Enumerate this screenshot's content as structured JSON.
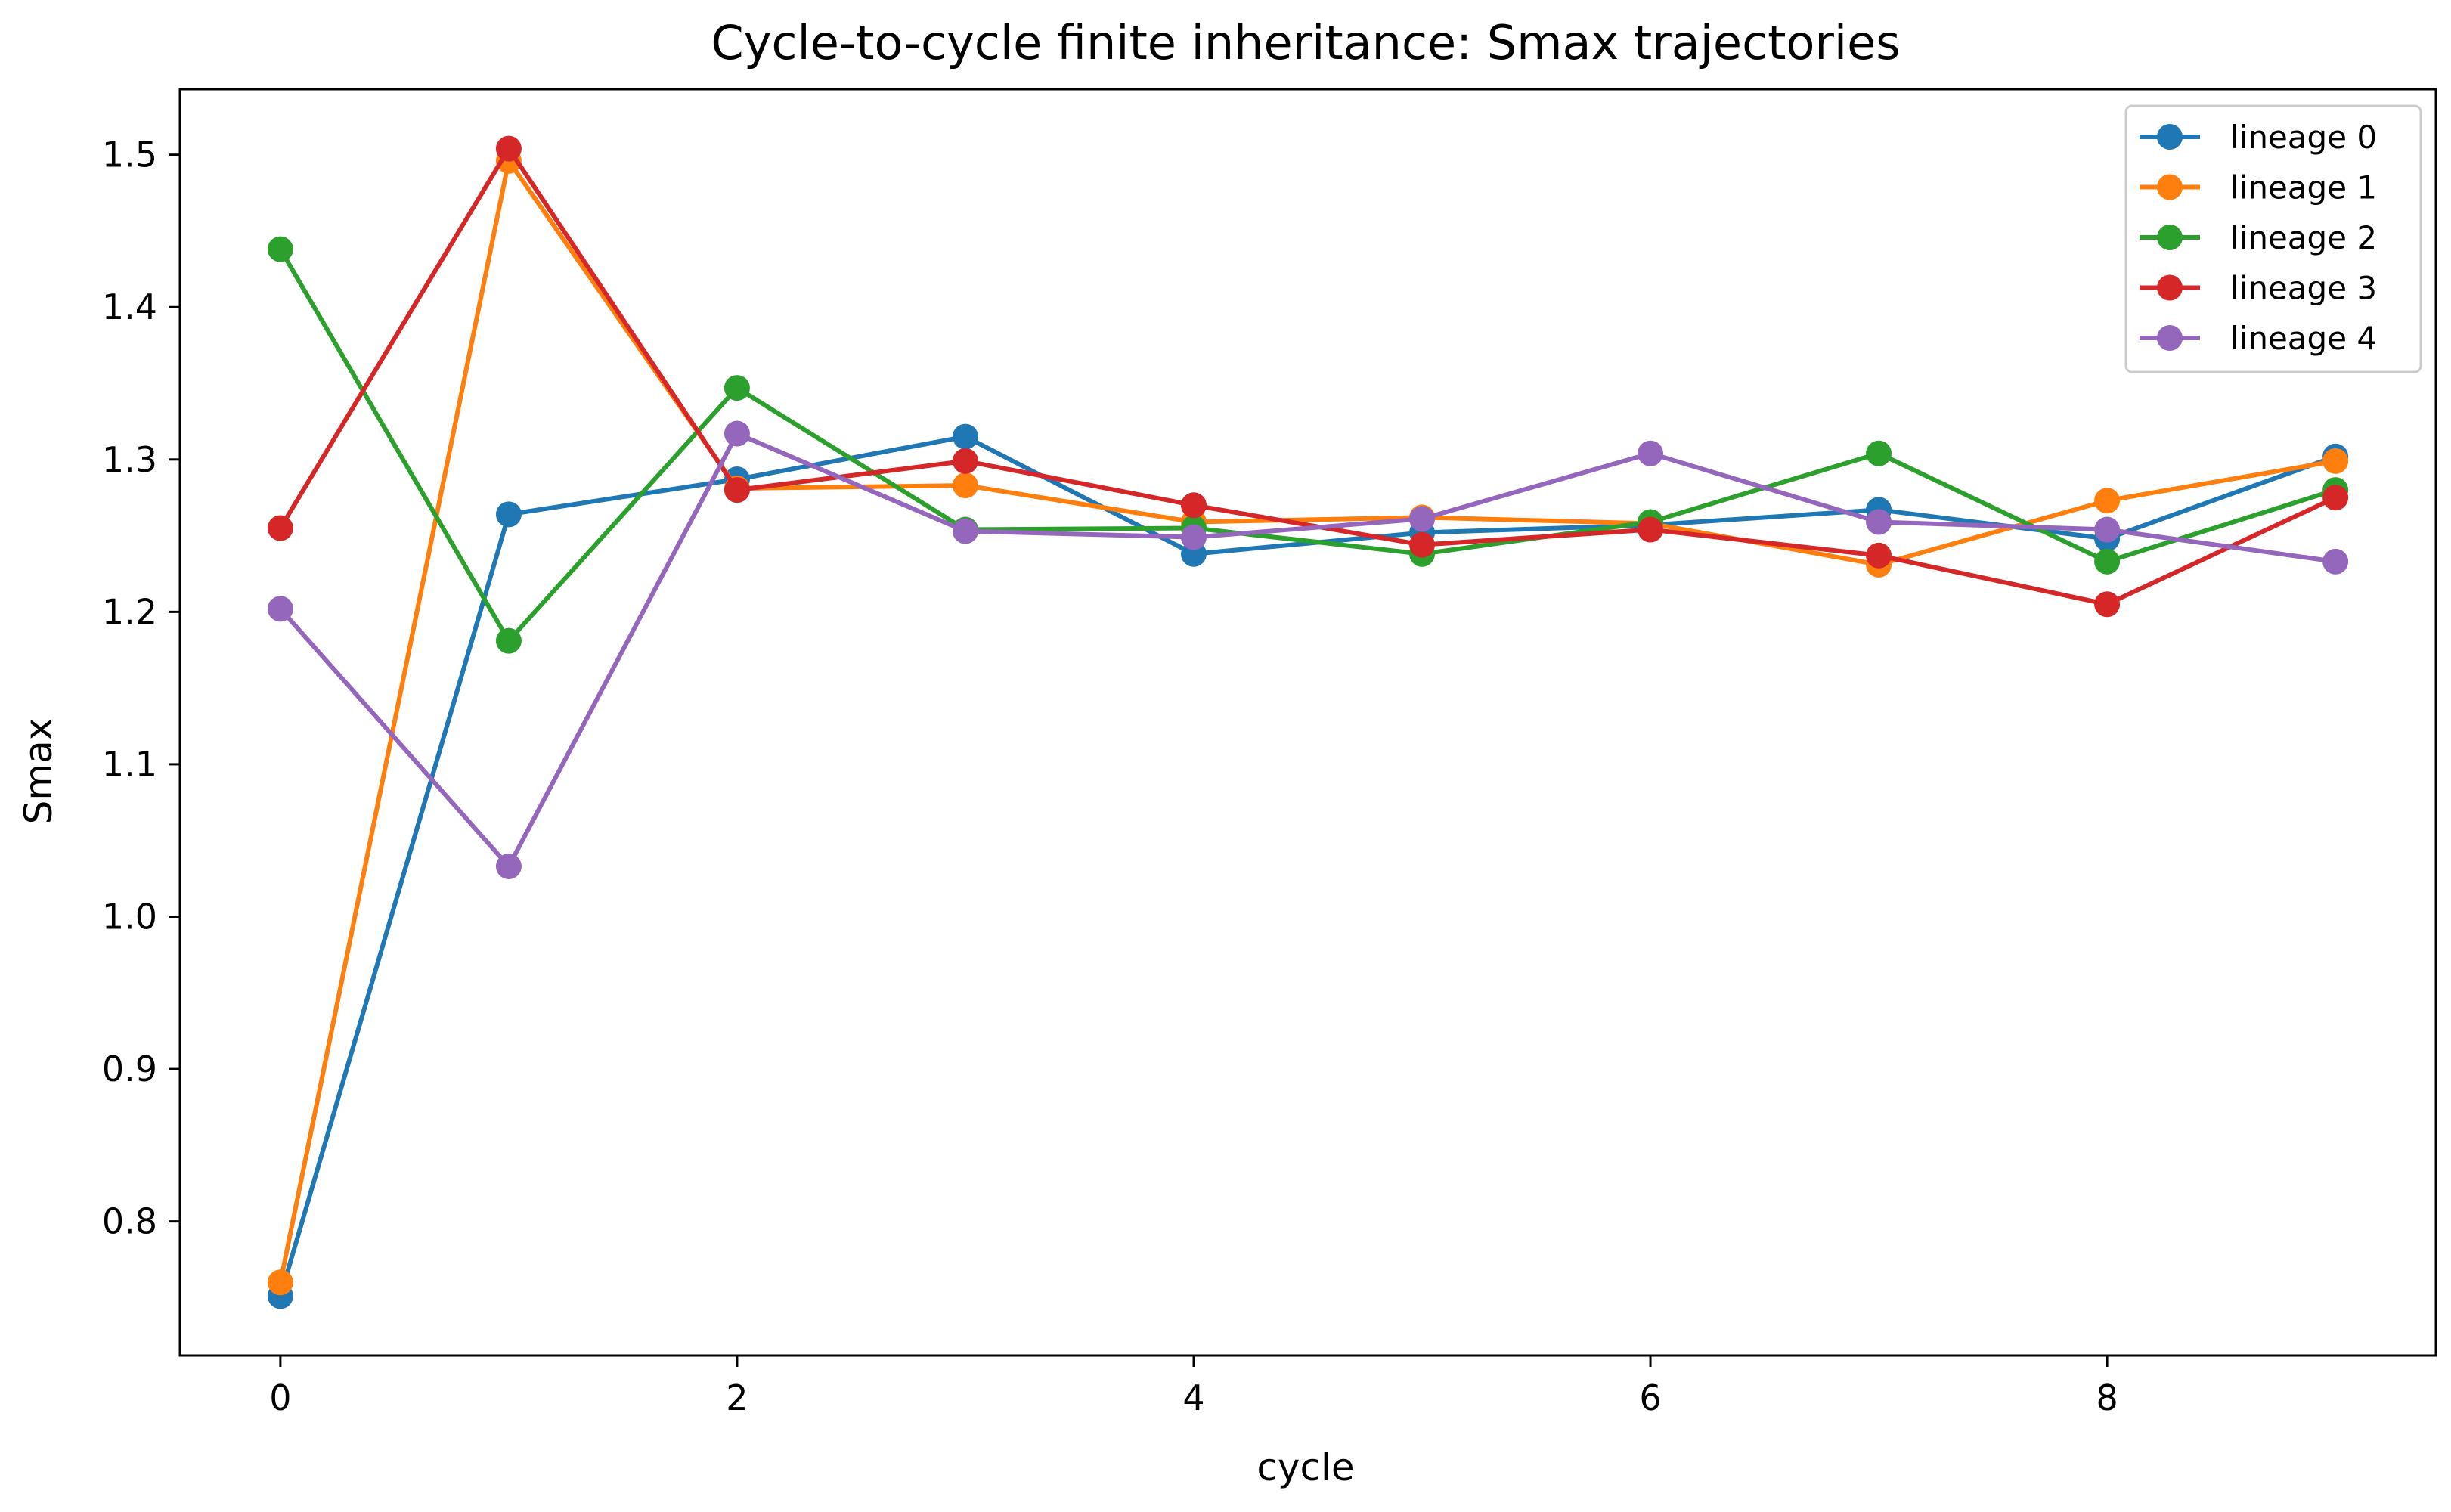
{
  "chart_data": {
    "type": "line",
    "title": "Cycle-to-cycle finite inheritance: Smax trajectories",
    "xlabel": "cycle",
    "ylabel": "Smax",
    "x": [
      0,
      1,
      2,
      3,
      4,
      5,
      6,
      7,
      8,
      9
    ],
    "xlim": [
      -0.44,
      9.44
    ],
    "ylim": [
      0.712,
      1.543
    ],
    "xticks": [
      0,
      2,
      4,
      6,
      8
    ],
    "yticks": [
      0.8,
      0.9,
      1.0,
      1.1,
      1.2,
      1.3,
      1.4,
      1.5
    ],
    "ytick_labels": [
      "0.8",
      "0.9",
      "1.0",
      "1.1",
      "1.2",
      "1.3",
      "1.4",
      "1.5"
    ],
    "grid": false,
    "legend_position": "upper-right",
    "series": [
      {
        "name": "lineage 0",
        "color": "#1f77b4",
        "values": [
          0.751,
          1.264,
          1.287,
          1.315,
          1.238,
          1.252,
          1.257,
          1.267,
          1.248,
          1.302
        ]
      },
      {
        "name": "lineage 1",
        "color": "#ff7f0e",
        "values": [
          0.76,
          1.496,
          1.281,
          1.283,
          1.259,
          1.262,
          1.258,
          1.231,
          1.273,
          1.299
        ]
      },
      {
        "name": "lineage 2",
        "color": "#2ca02c",
        "values": [
          1.438,
          1.181,
          1.347,
          1.254,
          1.255,
          1.238,
          1.259,
          1.304,
          1.233,
          1.28
        ]
      },
      {
        "name": "lineage 3",
        "color": "#d62728",
        "values": [
          1.255,
          1.504,
          1.28,
          1.299,
          1.27,
          1.244,
          1.254,
          1.237,
          1.205,
          1.275
        ]
      },
      {
        "name": "lineage 4",
        "color": "#9467bd",
        "values": [
          1.202,
          1.033,
          1.317,
          1.253,
          1.249,
          1.261,
          1.304,
          1.259,
          1.254,
          1.233
        ]
      }
    ]
  }
}
